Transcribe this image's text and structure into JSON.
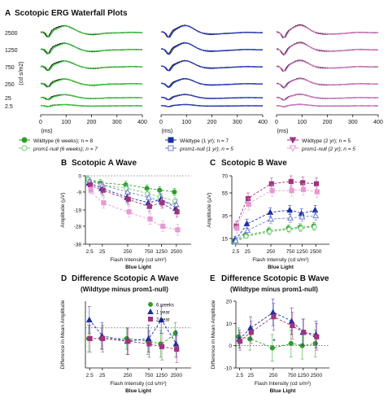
{
  "figure": {
    "panel_a": {
      "letter": "A",
      "title": "Scotopic ERG Waterfall Plots"
    },
    "panel_b": {
      "letter": "B",
      "title": "Scotopic A Wave"
    },
    "panel_c": {
      "letter": "C",
      "title": "Scotopic B Wave"
    },
    "panel_d": {
      "letter": "D",
      "title": "Difference Scotopic A Wave",
      "subtitle": "(Wildtype minus prom1-null)"
    },
    "panel_e": {
      "letter": "E",
      "title": "Difference Scotopic B Wave",
      "subtitle": "(Wildtype minus prom1-null)"
    },
    "legend_a": [
      {
        "label": "Wildtype (6 weeks); n = 8",
        "color": "#2e9e2e",
        "marker": "filled-circle"
      },
      {
        "label": "prom1-null (6 weeks); n = 7",
        "color": "#6fd16f",
        "marker": "open-circle"
      },
      {
        "label": "Wildtype (1 yr); n = 7",
        "color": "#1a2f9e",
        "marker": "filled-square"
      },
      {
        "label": "prom1-null (1 yr); n = 5",
        "color": "#6f7fd6",
        "marker": "open-square"
      },
      {
        "label": "Wildtype (2 yr); n = 5",
        "color": "#a0337e",
        "marker": "filled-triangle"
      },
      {
        "label": "prom1-null (2 yr); n = 5",
        "color": "#e59ad4",
        "marker": "open-triangle"
      }
    ]
  },
  "chart_data": [
    {
      "panel": "A",
      "type": "line",
      "title": "Scotopic ERG Waterfall Plots",
      "ylabel": "(cd s/m2)",
      "xlabel": "(ms)",
      "row_labels": [
        "2500",
        "1250",
        "750",
        "250",
        "25",
        "2.5"
      ],
      "x_ticks": [
        0,
        100,
        200,
        300,
        400
      ],
      "xlim": [
        0,
        400
      ],
      "subplots": [
        {
          "group": "6 weeks",
          "colors": {
            "wildtype": "#111111",
            "prom1_null": "#39c439"
          }
        },
        {
          "group": "1 yr",
          "colors": {
            "wildtype": "#111111",
            "prom1_null": "#2d3fbf"
          }
        },
        {
          "group": "2 yr",
          "colors": {
            "wildtype": "#111111",
            "prom1_null": "#d675c4"
          }
        }
      ],
      "row_amplitudes": [
        1.0,
        0.95,
        0.85,
        0.72,
        0.45,
        0.18
      ]
    },
    {
      "panel": "B",
      "type": "line",
      "title": "Scotopic A Wave",
      "xlabel": "Flash Intensity (cd s/m²)",
      "xlabel2": "Blue Light",
      "ylabel": "Amplitude (µV)",
      "ylim": [
        -38,
        0
      ],
      "y_ticks": [
        -38,
        -28,
        -19,
        -9,
        0
      ],
      "y_tick_labels": [
        "-38",
        "-28",
        "-19",
        "-9",
        "0"
      ],
      "categories": [
        "2.5",
        "25",
        "250",
        "750",
        "1250",
        "2500"
      ],
      "series": [
        {
          "key": "wt6w",
          "color": "#2e9e2e",
          "marker": "circle",
          "filled": true,
          "values": [
            -2,
            -4,
            -5,
            -7,
            -8,
            -9
          ],
          "err": [
            2,
            2,
            2,
            2,
            2,
            2
          ]
        },
        {
          "key": "ko6w",
          "color": "#6fd16f",
          "marker": "circle",
          "filled": false,
          "values": [
            -2,
            -5,
            -7,
            -10,
            -12,
            -14
          ],
          "err": [
            2,
            2,
            2,
            2,
            2,
            2
          ]
        },
        {
          "key": "wt1y",
          "color": "#1a2f9e",
          "marker": "triangle",
          "filled": true,
          "values": [
            -4,
            -7,
            -12,
            -15,
            -13,
            -18
          ],
          "err": [
            2,
            3,
            3,
            3,
            3,
            3
          ]
        },
        {
          "key": "ko1y",
          "color": "#6f7fd6",
          "marker": "triangle",
          "filled": false,
          "values": [
            -3,
            -5,
            -9,
            -12,
            -14,
            -16
          ],
          "err": [
            2,
            2,
            3,
            3,
            3,
            3
          ]
        },
        {
          "key": "wt2y",
          "color": "#a0337e",
          "marker": "square",
          "filled": true,
          "values": [
            -5,
            -8,
            -13,
            -17,
            -15,
            -20
          ],
          "err": [
            2,
            3,
            3,
            3,
            3,
            3
          ]
        },
        {
          "key": "ko2y",
          "color": "#e59ad4",
          "marker": "square",
          "filled": true,
          "values": [
            -8,
            -15,
            -20,
            -24,
            -28,
            -30
          ],
          "err": [
            2,
            3,
            3,
            3,
            3,
            3
          ]
        }
      ]
    },
    {
      "panel": "C",
      "type": "line",
      "title": "Scotopic B Wave",
      "xlabel": "Flash Intensity (cd s/m²)",
      "xlabel2": "Blue Light",
      "ylabel": "Amplitude (µV)",
      "ylim": [
        10,
        70
      ],
      "y_ticks": [
        15,
        35,
        55,
        70
      ],
      "y_tick_labels": [
        "15",
        "35",
        "55",
        "70"
      ],
      "categories": [
        "2.5",
        "25",
        "250",
        "750",
        "1250",
        "2500"
      ],
      "series": [
        {
          "key": "wt6w",
          "color": "#2e9e2e",
          "marker": "circle",
          "filled": true,
          "values": [
            13,
            18,
            22,
            24,
            25,
            26
          ],
          "err": [
            2,
            2,
            3,
            3,
            3,
            3
          ]
        },
        {
          "key": "ko6w",
          "color": "#6fd16f",
          "marker": "circle",
          "filled": false,
          "values": [
            12,
            17,
            21,
            23,
            24,
            25
          ],
          "err": [
            2,
            2,
            3,
            3,
            3,
            3
          ]
        },
        {
          "key": "wt1y",
          "color": "#1a2f9e",
          "marker": "triangle",
          "filled": true,
          "values": [
            14,
            28,
            38,
            40,
            37,
            40
          ],
          "err": [
            3,
            4,
            4,
            4,
            4,
            4
          ]
        },
        {
          "key": "ko1y",
          "color": "#6f7fd6",
          "marker": "triangle",
          "filled": false,
          "values": [
            13,
            22,
            32,
            33,
            34,
            35
          ],
          "err": [
            3,
            4,
            4,
            4,
            4,
            4
          ]
        },
        {
          "key": "wt2y",
          "color": "#a0337e",
          "marker": "square",
          "filled": true,
          "values": [
            26,
            50,
            63,
            65,
            64,
            63
          ],
          "err": [
            4,
            5,
            5,
            5,
            5,
            5
          ]
        },
        {
          "key": "ko2y",
          "color": "#e59ad4",
          "marker": "square",
          "filled": true,
          "values": [
            24,
            45,
            57,
            57,
            58,
            56
          ],
          "err": [
            4,
            5,
            5,
            5,
            5,
            5
          ]
        }
      ]
    },
    {
      "panel": "D",
      "type": "line",
      "title": "Difference Scotopic A Wave",
      "subtitle": "(Wildtype minus prom1-null)",
      "xlabel": "Flash Intensity (cd s/m²)",
      "xlabel2": "Blue Light",
      "ylabel": "Difference in Mean Amplitude",
      "ylim": [
        -15,
        10
      ],
      "categories": [
        "2.5",
        "25",
        "250",
        "750",
        "1250",
        "2500"
      ],
      "legend": [
        "6 weeks",
        "1 year",
        "2 year"
      ],
      "series": [
        {
          "name": "6 weeks",
          "color": "#2e9e2e",
          "marker": "circle",
          "values": [
            -4,
            -4,
            -4,
            -5,
            -6,
            -2
          ],
          "err": [
            5,
            4,
            4,
            5,
            5,
            4
          ]
        },
        {
          "name": "1 year",
          "color": "#1a2f9e",
          "marker": "triangle",
          "values": [
            3,
            -3,
            -5,
            -4,
            3,
            -6
          ],
          "err": [
            5,
            5,
            5,
            5,
            5,
            5
          ]
        },
        {
          "name": "2 year",
          "color": "#a0337e",
          "marker": "square",
          "values": [
            -4,
            -4,
            -5,
            -6,
            -7,
            -8
          ],
          "err": [
            5,
            5,
            5,
            5,
            5,
            5
          ]
        }
      ]
    },
    {
      "panel": "E",
      "type": "line",
      "title": "Difference Scotopic B Wave",
      "subtitle": "(Wildtype minus prom1-null)",
      "xlabel": "Flash Intensity (cd s/m²)",
      "xlabel2": "Blue Light",
      "ylabel": "Difference in Mean Amplitude",
      "ylim": [
        -10,
        20
      ],
      "y_ticks": [
        -10,
        0,
        10,
        20
      ],
      "y_tick_labels": [
        "-10",
        "0",
        "10",
        "20"
      ],
      "categories": [
        "2.5",
        "25",
        "250",
        "750",
        "1250",
        "2500"
      ],
      "annotation": "*",
      "series": [
        {
          "name": "6 weeks",
          "color": "#2e9e2e",
          "marker": "circle",
          "values": [
            4,
            3,
            -1,
            1,
            0,
            1
          ],
          "err": [
            4,
            5,
            6,
            6,
            6,
            6
          ]
        },
        {
          "name": "1 year",
          "color": "#1a2f9e",
          "marker": "triangle",
          "values": [
            3,
            8,
            15,
            11,
            6,
            5
          ],
          "err": [
            4,
            5,
            6,
            6,
            6,
            6
          ]
        },
        {
          "name": "2 year",
          "color": "#a0337e",
          "marker": "square",
          "values": [
            2,
            6,
            13,
            9,
            6,
            4
          ],
          "err": [
            4,
            5,
            6,
            6,
            6,
            6
          ]
        }
      ]
    }
  ]
}
